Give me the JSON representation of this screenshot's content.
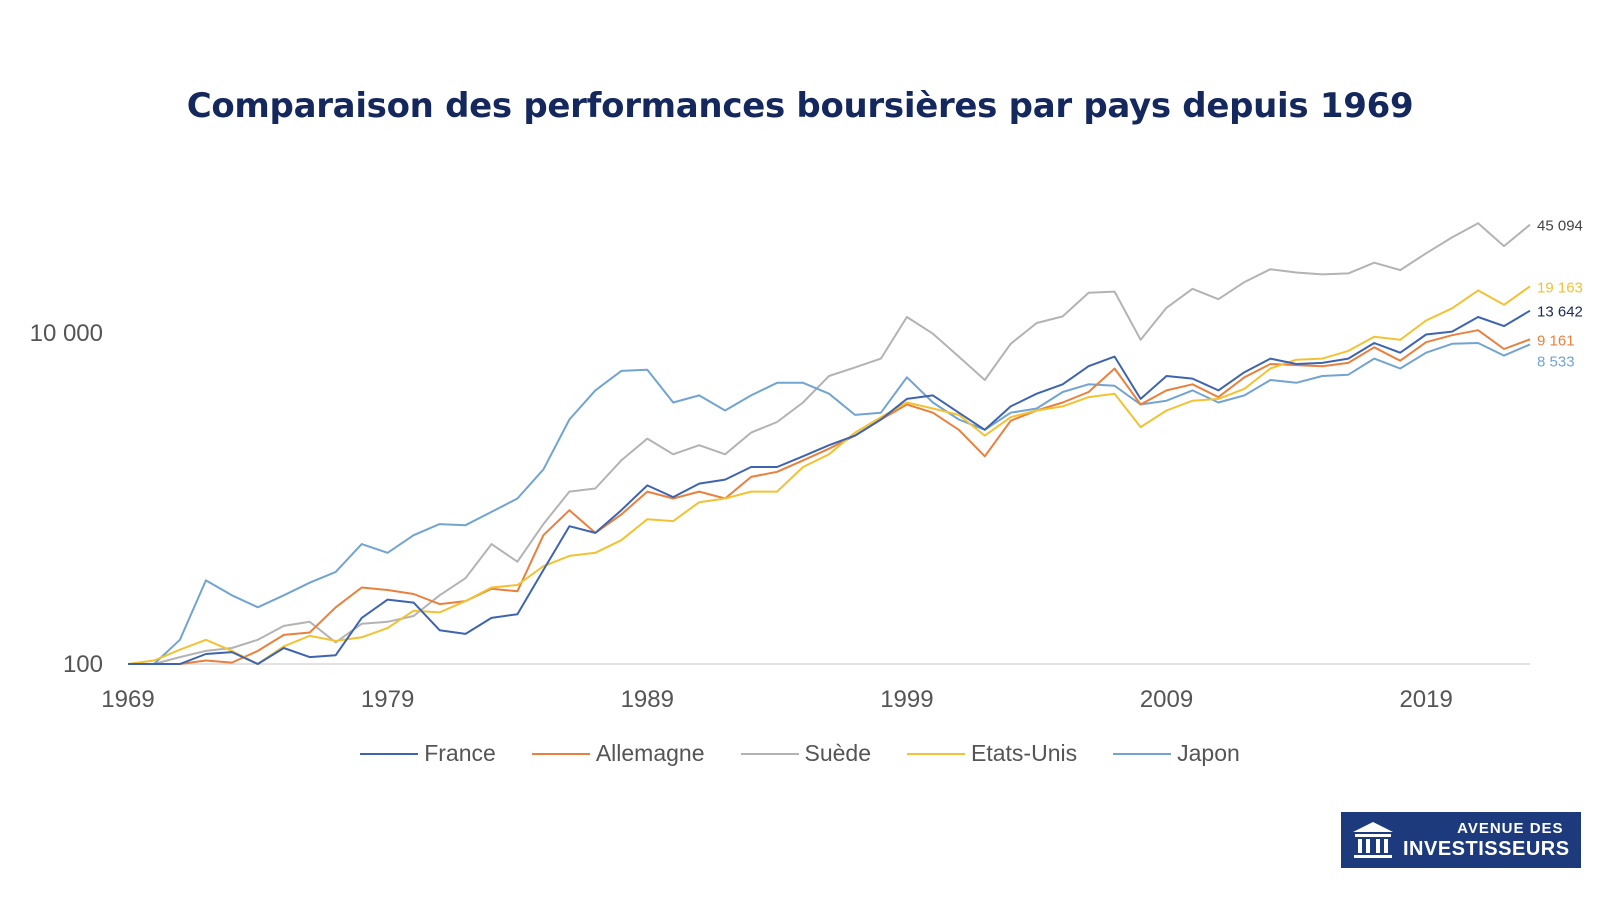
{
  "chart_data": {
    "type": "line",
    "title": "Comparaison des performances boursières par pays depuis 1969",
    "y_scale": "log",
    "ylim": [
      100,
      60000
    ],
    "y_ticks": [
      {
        "value": 100,
        "label": "100"
      },
      {
        "value": 10000,
        "label": "10 000"
      }
    ],
    "xlim": [
      1969,
      2023
    ],
    "x_ticks": [
      1969,
      1979,
      1989,
      1999,
      2009,
      2019
    ],
    "grid": false,
    "legend_position": "bottom",
    "x": [
      1969,
      1970,
      1971,
      1972,
      1973,
      1974,
      1975,
      1976,
      1977,
      1978,
      1979,
      1980,
      1981,
      1982,
      1983,
      1984,
      1985,
      1986,
      1987,
      1988,
      1989,
      1990,
      1991,
      1992,
      1993,
      1994,
      1995,
      1996,
      1997,
      1998,
      1999,
      2000,
      2001,
      2002,
      2003,
      2004,
      2005,
      2006,
      2007,
      2008,
      2009,
      2010,
      2011,
      2012,
      2013,
      2014,
      2015,
      2016,
      2017,
      2018,
      2019,
      2020,
      2021,
      2022,
      2023
    ],
    "series": [
      {
        "name": "France",
        "color": "#3e64b0",
        "end_label": "13 642",
        "values": [
          100,
          80,
          100,
          115,
          118,
          100,
          125,
          110,
          113,
          190,
          245,
          235,
          160,
          152,
          190,
          200,
          370,
          680,
          620,
          850,
          1200,
          1020,
          1230,
          1300,
          1550,
          1550,
          1800,
          2100,
          2400,
          3000,
          4000,
          4200,
          3300,
          2600,
          3600,
          4300,
          4900,
          6300,
          7200,
          4000,
          5500,
          5300,
          4500,
          5800,
          7000,
          6500,
          6600,
          7000,
          8700,
          7600,
          9800,
          10200,
          12500,
          11000,
          13642
        ]
      },
      {
        "name": "Allemagne",
        "color": "#e9803e",
        "end_label": "9 161",
        "values": [
          100,
          75,
          90,
          105,
          102,
          120,
          150,
          155,
          220,
          290,
          280,
          265,
          230,
          240,
          285,
          275,
          600,
          850,
          620,
          800,
          1100,
          1000,
          1100,
          1000,
          1350,
          1450,
          1700,
          2000,
          2400,
          3000,
          3700,
          3300,
          2600,
          1800,
          2950,
          3400,
          3800,
          4400,
          6100,
          3700,
          4500,
          4900,
          4100,
          5400,
          6500,
          6400,
          6300,
          6600,
          8200,
          6800,
          8800,
          9700,
          10400,
          8000,
          9161
        ]
      },
      {
        "name": "Suède",
        "color": "#b3b3b3",
        "end_label": "45 094",
        "values": [
          100,
          85,
          110,
          120,
          125,
          140,
          170,
          180,
          135,
          175,
          180,
          195,
          260,
          330,
          530,
          415,
          700,
          1100,
          1150,
          1700,
          2300,
          1850,
          2100,
          1850,
          2500,
          2900,
          3800,
          5500,
          6200,
          7000,
          12500,
          9900,
          7200,
          5200,
          8600,
          11500,
          12600,
          17500,
          17800,
          9100,
          14200,
          18500,
          16000,
          20300,
          24300,
          23200,
          22600,
          22900,
          26600,
          24000,
          30300,
          37800,
          46000,
          33500,
          45094
        ]
      },
      {
        "name": "Etats-Unis",
        "color": "#f3c232",
        "end_label": "19 163",
        "values": [
          100,
          105,
          122,
          140,
          120,
          100,
          128,
          148,
          138,
          145,
          165,
          210,
          205,
          240,
          290,
          300,
          390,
          450,
          470,
          560,
          750,
          730,
          950,
          1000,
          1100,
          1100,
          1550,
          1850,
          2500,
          3100,
          3800,
          3500,
          3200,
          2400,
          3100,
          3400,
          3600,
          4100,
          4300,
          2700,
          3400,
          3900,
          4000,
          4600,
          6100,
          6900,
          7000,
          7800,
          9500,
          9100,
          11900,
          14100,
          18100,
          14800,
          19163
        ]
      },
      {
        "name": "Japon",
        "color": "#72a4d1",
        "end_label": "8 533",
        "values": [
          100,
          90,
          140,
          320,
          260,
          220,
          260,
          310,
          360,
          530,
          470,
          600,
          700,
          690,
          830,
          1000,
          1500,
          3000,
          4500,
          5900,
          6000,
          3800,
          4200,
          3400,
          4200,
          5000,
          5000,
          4300,
          3200,
          3300,
          5400,
          3800,
          3000,
          2600,
          3300,
          3500,
          4400,
          4900,
          4800,
          3700,
          3900,
          4500,
          3800,
          4200,
          5200,
          5000,
          5500,
          5600,
          7000,
          6100,
          7600,
          8600,
          8700,
          7300,
          8533
        ]
      }
    ]
  },
  "legend": {
    "items": [
      {
        "label": "France",
        "color": "#3e64b0"
      },
      {
        "label": "Allemagne",
        "color": "#e9803e"
      },
      {
        "label": "Suède",
        "color": "#b3b3b3"
      },
      {
        "label": "Etats-Unis",
        "color": "#f3c232"
      },
      {
        "label": "Japon",
        "color": "#72a4d1"
      }
    ]
  },
  "logo": {
    "line1": "AVENUE DES",
    "line2": "INVESTISSEURS",
    "icon": "bank-building-icon"
  }
}
